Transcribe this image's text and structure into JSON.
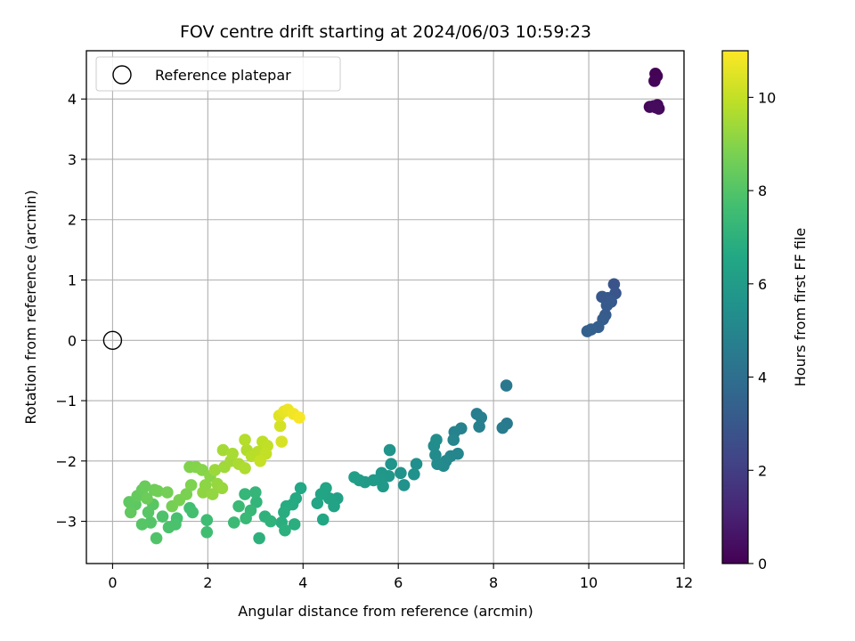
{
  "chart_data": {
    "type": "scatter",
    "title": "FOV centre drift starting at 2024/06/03 10:59:23",
    "xlabel": "Angular distance from reference (arcmin)",
    "ylabel": "Rotation from reference (arcmin)",
    "xlim": [
      -0.55,
      12.0
    ],
    "ylim": [
      -3.7,
      4.8
    ],
    "xticks": [
      "0",
      "2",
      "4",
      "6",
      "8",
      "10",
      "12"
    ],
    "yticks": [
      "−3",
      "−2",
      "−1",
      "0",
      "1",
      "2",
      "3",
      "4"
    ],
    "grid": true,
    "legend": {
      "placement": "top-left",
      "entries": [
        "Reference platepar"
      ]
    },
    "reference_point": {
      "x": 0,
      "y": 0
    },
    "colorbar": {
      "label": "Hours from first FF file",
      "range": [
        0,
        11
      ],
      "ticks": [
        "0",
        "2",
        "4",
        "6",
        "8",
        "10"
      ],
      "colormap": "viridis"
    },
    "points": [
      {
        "x": 11.4,
        "y": 4.42,
        "c": 0.05
      },
      {
        "x": 11.43,
        "y": 4.38,
        "c": 0.08
      },
      {
        "x": 11.38,
        "y": 4.3,
        "c": 0.12
      },
      {
        "x": 11.28,
        "y": 3.87,
        "c": 0.18
      },
      {
        "x": 11.44,
        "y": 3.9,
        "c": 0.22
      },
      {
        "x": 11.47,
        "y": 3.84,
        "c": 0.26
      },
      {
        "x": 11.36,
        "y": 3.88,
        "c": 0.3
      },
      {
        "x": 11.41,
        "y": 3.86,
        "c": 0.34
      },
      {
        "x": 10.53,
        "y": 0.93,
        "c": 2.85
      },
      {
        "x": 10.56,
        "y": 0.78,
        "c": 2.9
      },
      {
        "x": 10.4,
        "y": 0.7,
        "c": 2.95
      },
      {
        "x": 10.28,
        "y": 0.72,
        "c": 3.0
      },
      {
        "x": 10.47,
        "y": 0.64,
        "c": 3.05
      },
      {
        "x": 10.38,
        "y": 0.58,
        "c": 3.1
      },
      {
        "x": 10.35,
        "y": 0.42,
        "c": 3.15
      },
      {
        "x": 10.3,
        "y": 0.35,
        "c": 3.2
      },
      {
        "x": 10.2,
        "y": 0.22,
        "c": 3.25
      },
      {
        "x": 10.05,
        "y": 0.18,
        "c": 3.3
      },
      {
        "x": 9.97,
        "y": 0.15,
        "c": 3.35
      },
      {
        "x": 8.27,
        "y": -0.75,
        "c": 4.4
      },
      {
        "x": 8.28,
        "y": -1.38,
        "c": 4.5
      },
      {
        "x": 8.19,
        "y": -1.45,
        "c": 4.55
      },
      {
        "x": 7.65,
        "y": -1.22,
        "c": 4.65
      },
      {
        "x": 7.74,
        "y": -1.28,
        "c": 4.7
      },
      {
        "x": 7.7,
        "y": -1.43,
        "c": 4.75
      },
      {
        "x": 7.32,
        "y": -1.46,
        "c": 4.85
      },
      {
        "x": 7.18,
        "y": -1.52,
        "c": 4.9
      },
      {
        "x": 7.16,
        "y": -1.65,
        "c": 4.95
      },
      {
        "x": 7.25,
        "y": -1.88,
        "c": 5.0
      },
      {
        "x": 7.1,
        "y": -1.92,
        "c": 5.05
      },
      {
        "x": 7.0,
        "y": -2.0,
        "c": 5.1
      },
      {
        "x": 6.95,
        "y": -2.08,
        "c": 5.15
      },
      {
        "x": 6.82,
        "y": -2.05,
        "c": 5.2
      },
      {
        "x": 6.78,
        "y": -1.9,
        "c": 5.25
      },
      {
        "x": 6.75,
        "y": -1.75,
        "c": 5.3
      },
      {
        "x": 6.8,
        "y": -1.65,
        "c": 5.35
      },
      {
        "x": 6.38,
        "y": -2.05,
        "c": 5.45
      },
      {
        "x": 6.33,
        "y": -2.22,
        "c": 5.5
      },
      {
        "x": 6.12,
        "y": -2.4,
        "c": 5.55
      },
      {
        "x": 6.05,
        "y": -2.2,
        "c": 5.6
      },
      {
        "x": 5.82,
        "y": -1.82,
        "c": 5.65
      },
      {
        "x": 5.85,
        "y": -2.05,
        "c": 5.7
      },
      {
        "x": 5.8,
        "y": -2.25,
        "c": 5.75
      },
      {
        "x": 5.65,
        "y": -2.2,
        "c": 5.8
      },
      {
        "x": 5.6,
        "y": -2.3,
        "c": 5.85
      },
      {
        "x": 5.68,
        "y": -2.42,
        "c": 5.9
      },
      {
        "x": 5.48,
        "y": -2.32,
        "c": 5.95
      },
      {
        "x": 5.3,
        "y": -2.35,
        "c": 6.0
      },
      {
        "x": 5.18,
        "y": -2.32,
        "c": 6.05
      },
      {
        "x": 5.08,
        "y": -2.27,
        "c": 6.1
      },
      {
        "x": 4.72,
        "y": -2.62,
        "c": 6.25
      },
      {
        "x": 4.65,
        "y": -2.75,
        "c": 6.3
      },
      {
        "x": 4.55,
        "y": -2.62,
        "c": 6.35
      },
      {
        "x": 4.48,
        "y": -2.45,
        "c": 6.4
      },
      {
        "x": 4.38,
        "y": -2.55,
        "c": 6.45
      },
      {
        "x": 4.3,
        "y": -2.7,
        "c": 6.5
      },
      {
        "x": 4.42,
        "y": -2.97,
        "c": 6.55
      },
      {
        "x": 3.95,
        "y": -2.45,
        "c": 6.6
      },
      {
        "x": 3.85,
        "y": -2.62,
        "c": 6.65
      },
      {
        "x": 3.78,
        "y": -2.72,
        "c": 6.7
      },
      {
        "x": 3.65,
        "y": -2.75,
        "c": 6.75
      },
      {
        "x": 3.6,
        "y": -2.85,
        "c": 6.8
      },
      {
        "x": 3.82,
        "y": -3.05,
        "c": 6.85
      },
      {
        "x": 3.55,
        "y": -3.02,
        "c": 6.9
      },
      {
        "x": 3.62,
        "y": -3.15,
        "c": 6.95
      },
      {
        "x": 3.08,
        "y": -3.28,
        "c": 7.0
      },
      {
        "x": 3.2,
        "y": -2.92,
        "c": 7.05
      },
      {
        "x": 3.32,
        "y": -3.0,
        "c": 7.1
      },
      {
        "x": 3.02,
        "y": -2.68,
        "c": 7.15
      },
      {
        "x": 3.0,
        "y": -2.52,
        "c": 7.2
      },
      {
        "x": 2.78,
        "y": -2.55,
        "c": 7.25
      },
      {
        "x": 2.9,
        "y": -2.82,
        "c": 7.3
      },
      {
        "x": 2.8,
        "y": -2.95,
        "c": 7.35
      },
      {
        "x": 2.65,
        "y": -2.75,
        "c": 7.4
      },
      {
        "x": 2.55,
        "y": -3.02,
        "c": 7.45
      },
      {
        "x": 1.98,
        "y": -2.98,
        "c": 7.55
      },
      {
        "x": 1.98,
        "y": -3.18,
        "c": 7.6
      },
      {
        "x": 1.62,
        "y": -2.78,
        "c": 7.65
      },
      {
        "x": 1.68,
        "y": -2.85,
        "c": 7.7
      },
      {
        "x": 1.35,
        "y": -2.95,
        "c": 7.75
      },
      {
        "x": 1.32,
        "y": -3.05,
        "c": 7.8
      },
      {
        "x": 1.18,
        "y": -3.1,
        "c": 7.85
      },
      {
        "x": 1.05,
        "y": -2.92,
        "c": 7.9
      },
      {
        "x": 0.92,
        "y": -3.28,
        "c": 7.95
      },
      {
        "x": 0.8,
        "y": -3.02,
        "c": 8.0
      },
      {
        "x": 0.62,
        "y": -3.05,
        "c": 8.05
      },
      {
        "x": 0.75,
        "y": -2.85,
        "c": 8.1
      },
      {
        "x": 0.85,
        "y": -2.72,
        "c": 8.15
      },
      {
        "x": 0.48,
        "y": -2.72,
        "c": 8.2
      },
      {
        "x": 0.35,
        "y": -2.68,
        "c": 8.25
      },
      {
        "x": 0.38,
        "y": -2.85,
        "c": 8.3
      },
      {
        "x": 0.52,
        "y": -2.58,
        "c": 8.35
      },
      {
        "x": 0.62,
        "y": -2.48,
        "c": 8.4
      },
      {
        "x": 0.68,
        "y": -2.42,
        "c": 8.45
      },
      {
        "x": 0.72,
        "y": -2.62,
        "c": 8.5
      },
      {
        "x": 0.88,
        "y": -2.48,
        "c": 8.55
      },
      {
        "x": 0.95,
        "y": -2.5,
        "c": 8.6
      },
      {
        "x": 1.15,
        "y": -2.52,
        "c": 8.65
      },
      {
        "x": 1.25,
        "y": -2.75,
        "c": 8.7
      },
      {
        "x": 1.4,
        "y": -2.65,
        "c": 8.75
      },
      {
        "x": 1.55,
        "y": -2.55,
        "c": 8.8
      },
      {
        "x": 1.65,
        "y": -2.4,
        "c": 8.85
      },
      {
        "x": 1.62,
        "y": -2.1,
        "c": 8.9
      },
      {
        "x": 1.75,
        "y": -2.1,
        "c": 8.95
      },
      {
        "x": 1.88,
        "y": -2.15,
        "c": 9.0
      },
      {
        "x": 2.05,
        "y": -2.25,
        "c": 9.05
      },
      {
        "x": 1.95,
        "y": -2.4,
        "c": 9.1
      },
      {
        "x": 1.9,
        "y": -2.52,
        "c": 9.15
      },
      {
        "x": 2.1,
        "y": -2.55,
        "c": 9.2
      },
      {
        "x": 2.2,
        "y": -2.38,
        "c": 9.25
      },
      {
        "x": 2.3,
        "y": -2.45,
        "c": 9.3
      },
      {
        "x": 2.15,
        "y": -2.15,
        "c": 9.35
      },
      {
        "x": 2.35,
        "y": -2.1,
        "c": 9.4
      },
      {
        "x": 2.48,
        "y": -2.0,
        "c": 9.45
      },
      {
        "x": 2.32,
        "y": -1.82,
        "c": 9.5
      },
      {
        "x": 2.52,
        "y": -1.88,
        "c": 9.55
      },
      {
        "x": 2.65,
        "y": -2.05,
        "c": 9.6
      },
      {
        "x": 2.78,
        "y": -2.12,
        "c": 9.65
      },
      {
        "x": 2.82,
        "y": -1.82,
        "c": 9.7
      },
      {
        "x": 2.78,
        "y": -1.65,
        "c": 9.75
      },
      {
        "x": 2.92,
        "y": -1.92,
        "c": 9.8
      },
      {
        "x": 3.05,
        "y": -1.85,
        "c": 9.85
      },
      {
        "x": 3.15,
        "y": -1.68,
        "c": 9.9
      },
      {
        "x": 3.25,
        "y": -1.75,
        "c": 9.95
      },
      {
        "x": 3.22,
        "y": -1.88,
        "c": 10.0
      },
      {
        "x": 3.1,
        "y": -2.0,
        "c": 10.05
      },
      {
        "x": 3.52,
        "y": -1.42,
        "c": 10.3
      },
      {
        "x": 3.55,
        "y": -1.68,
        "c": 10.35
      },
      {
        "x": 3.5,
        "y": -1.25,
        "c": 10.5
      },
      {
        "x": 3.6,
        "y": -1.18,
        "c": 10.6
      },
      {
        "x": 3.68,
        "y": -1.15,
        "c": 10.7
      },
      {
        "x": 3.8,
        "y": -1.22,
        "c": 10.8
      },
      {
        "x": 3.92,
        "y": -1.28,
        "c": 10.9
      }
    ]
  }
}
